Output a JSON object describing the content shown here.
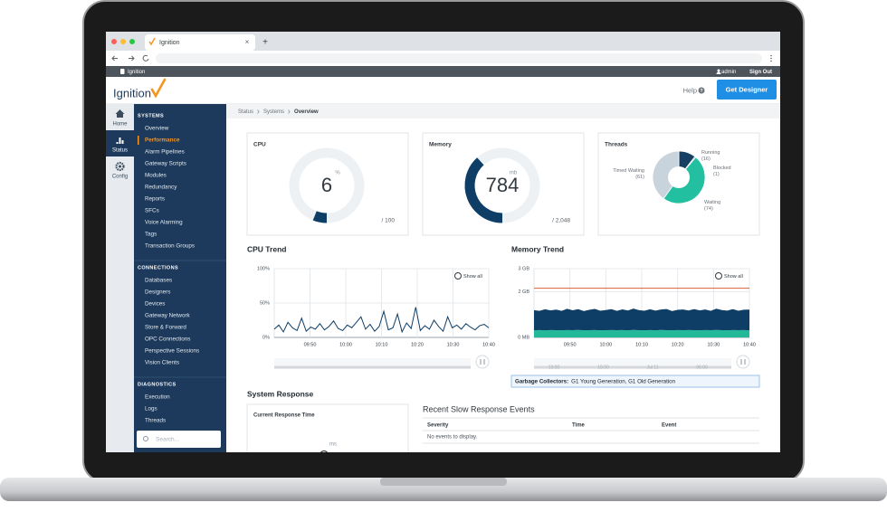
{
  "browser": {
    "tab_title": "Ignition",
    "close": "×",
    "new_tab": "+"
  },
  "app_bar": {
    "product": "Ignition",
    "user": "admin",
    "sign_out": "Sign Out"
  },
  "header": {
    "logo": "Ignition",
    "help": "Help",
    "help_icon": "?",
    "button": "Get Designer"
  },
  "nav": {
    "items": [
      "Home",
      "Status",
      "Config"
    ],
    "active": 1
  },
  "sidebar": {
    "sections": [
      {
        "title": "SYSTEMS",
        "items": [
          "Overview",
          "Performance",
          "Alarm Pipelines",
          "Gateway Scripts",
          "Modules",
          "Redundancy",
          "Reports",
          "SFCs",
          "Voice Alarming",
          "Tags",
          "Transaction Groups"
        ]
      },
      {
        "title": "CONNECTIONS",
        "items": [
          "Databases",
          "Designers",
          "Devices",
          "Gateway Network",
          "Store & Forward",
          "OPC Connections",
          "Perspective Sessions",
          "Vision Clients"
        ]
      },
      {
        "title": "DIAGNOSTICS",
        "items": [
          "Execution",
          "Logs",
          "Threads"
        ]
      }
    ],
    "active": {
      "section": 0,
      "item": 1
    },
    "search_placeholder": "Search..."
  },
  "breadcrumb": [
    "Status",
    "Systems",
    "Overview"
  ],
  "cpu": {
    "title": "CPU",
    "value": 6,
    "unit": "%",
    "max": 100,
    "max_label": "/ 100",
    "color": "#0e3d66"
  },
  "memory": {
    "title": "Memory",
    "value": 784,
    "unit": "mb",
    "max": 2048,
    "max_label": "/ 2,048",
    "color": "#0e3d66"
  },
  "threads": {
    "title": "Threads",
    "type": "pie",
    "slices": [
      {
        "name": "Running",
        "value": 16,
        "value_label": "(16)",
        "color": "#173f63"
      },
      {
        "name": "Blocked",
        "value": 1,
        "value_label": "(1)",
        "color": "#2a6fa5"
      },
      {
        "name": "Waiting",
        "value": 74,
        "value_label": "(74)",
        "color": "#22c0a0"
      },
      {
        "name": "Timed Waiting",
        "value": 61,
        "value_label": "(61)",
        "color": "#c9d3dc"
      }
    ]
  },
  "cpu_trend": {
    "title": "CPU Trend",
    "type": "line",
    "color": "#0e3d66",
    "show_all": "Show all",
    "ylim": [
      0,
      100
    ],
    "yticks": [
      {
        "value": 100,
        "label": "100%"
      },
      {
        "value": 50,
        "label": "50%"
      },
      {
        "value": 0,
        "label": "0%"
      }
    ],
    "xticks": [
      "09:50",
      "10:00",
      "10:10",
      "10:20",
      "10:30",
      "10:40"
    ],
    "values": [
      12,
      18,
      8,
      22,
      14,
      10,
      28,
      9,
      15,
      12,
      20,
      11,
      16,
      24,
      13,
      10,
      18,
      14,
      22,
      30,
      12,
      19,
      9,
      16,
      38,
      11,
      14,
      34,
      8,
      21,
      13,
      44,
      10,
      17,
      12,
      25,
      16,
      9,
      30,
      14,
      18,
      12,
      20,
      15,
      11,
      17,
      19,
      14
    ]
  },
  "memory_trend": {
    "title": "Memory Trend",
    "type": "stacked_area",
    "show_all": "Show all",
    "ylim": [
      0,
      3072
    ],
    "yticks": [
      {
        "value": 3072,
        "label": "3 GB"
      },
      {
        "value": 2048,
        "label": "2 GB"
      },
      {
        "value": 0,
        "label": "0 MB"
      }
    ],
    "xticks": [
      "09:50",
      "10:00",
      "10:10",
      "10:20",
      "10:30",
      "10:40"
    ],
    "series": [
      {
        "color": "#22b898",
        "values": [
          320,
          326,
          318,
          330,
          324,
          316,
          328,
          322,
          334,
          319,
          325,
          330,
          317,
          323,
          329,
          321,
          327,
          318,
          332,
          324,
          320,
          326,
          319,
          331,
          323,
          317,
          328,
          322,
          330,
          325,
          318,
          327,
          321,
          333,
          324,
          319,
          326,
          322,
          329,
          320
        ]
      },
      {
        "color": "#0e3d66",
        "values": [
          900,
          860,
          940,
          880,
          920,
          870,
          950,
          890,
          930,
          860,
          910,
          945,
          875,
          900,
          935,
          865,
          925,
          885,
          955,
          895,
          870,
          930,
          880,
          915,
          945,
          860,
          905,
          925,
          875,
          940,
          890,
          920,
          865,
          950,
          900,
          880,
          935,
          870,
          910,
          925
        ]
      }
    ],
    "limit": {
      "value": 2200,
      "color": "#d9623a"
    },
    "navigator_labels": [
      "13:00",
      "18:00",
      "Jul 11",
      "06:00"
    ],
    "gc": {
      "label": "Garbage Collectors:",
      "value": "G1 Young Generation, G1 Old Generation"
    }
  },
  "system_response": {
    "title": "System Response",
    "card_title": "Current Response Time",
    "unit": "ms"
  },
  "slow_events": {
    "title": "Recent Slow Response Events",
    "columns": [
      "Severity",
      "Time",
      "Event"
    ],
    "empty": "No events to display."
  }
}
